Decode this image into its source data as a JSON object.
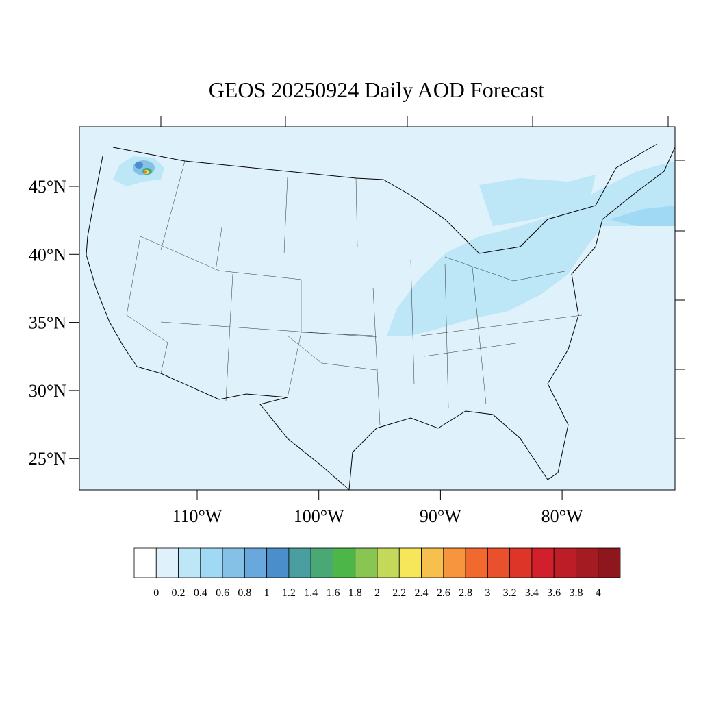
{
  "title": "GEOS 20250924 Daily AOD Forecast",
  "lat_labels": [
    "45°N",
    "40°N",
    "35°N",
    "30°N",
    "25°N"
  ],
  "lon_labels": [
    "110°W",
    "100°W",
    "90°W",
    "80°W"
  ],
  "colorbar": {
    "labels": [
      0,
      0.2,
      0.4,
      0.6,
      0.8,
      1,
      1.2,
      1.4,
      1.6,
      1.8,
      2,
      2.2,
      2.4,
      2.6,
      2.8,
      3,
      3.2,
      3.4,
      3.6,
      3.8,
      4
    ],
    "colors": [
      "#ffffff",
      "#dff2fb",
      "#bde6f7",
      "#9fd9f4",
      "#85c1e7",
      "#68a8dc",
      "#4a8ecb",
      "#4a9ea0",
      "#4aa875",
      "#4cb748",
      "#88c552",
      "#c4d85a",
      "#f6e75a",
      "#f7bf4d",
      "#f6953d",
      "#f2692f",
      "#e8512b",
      "#dd3527",
      "#d1202c",
      "#bc1d27",
      "#a51b22",
      "#8e171d"
    ]
  }
}
